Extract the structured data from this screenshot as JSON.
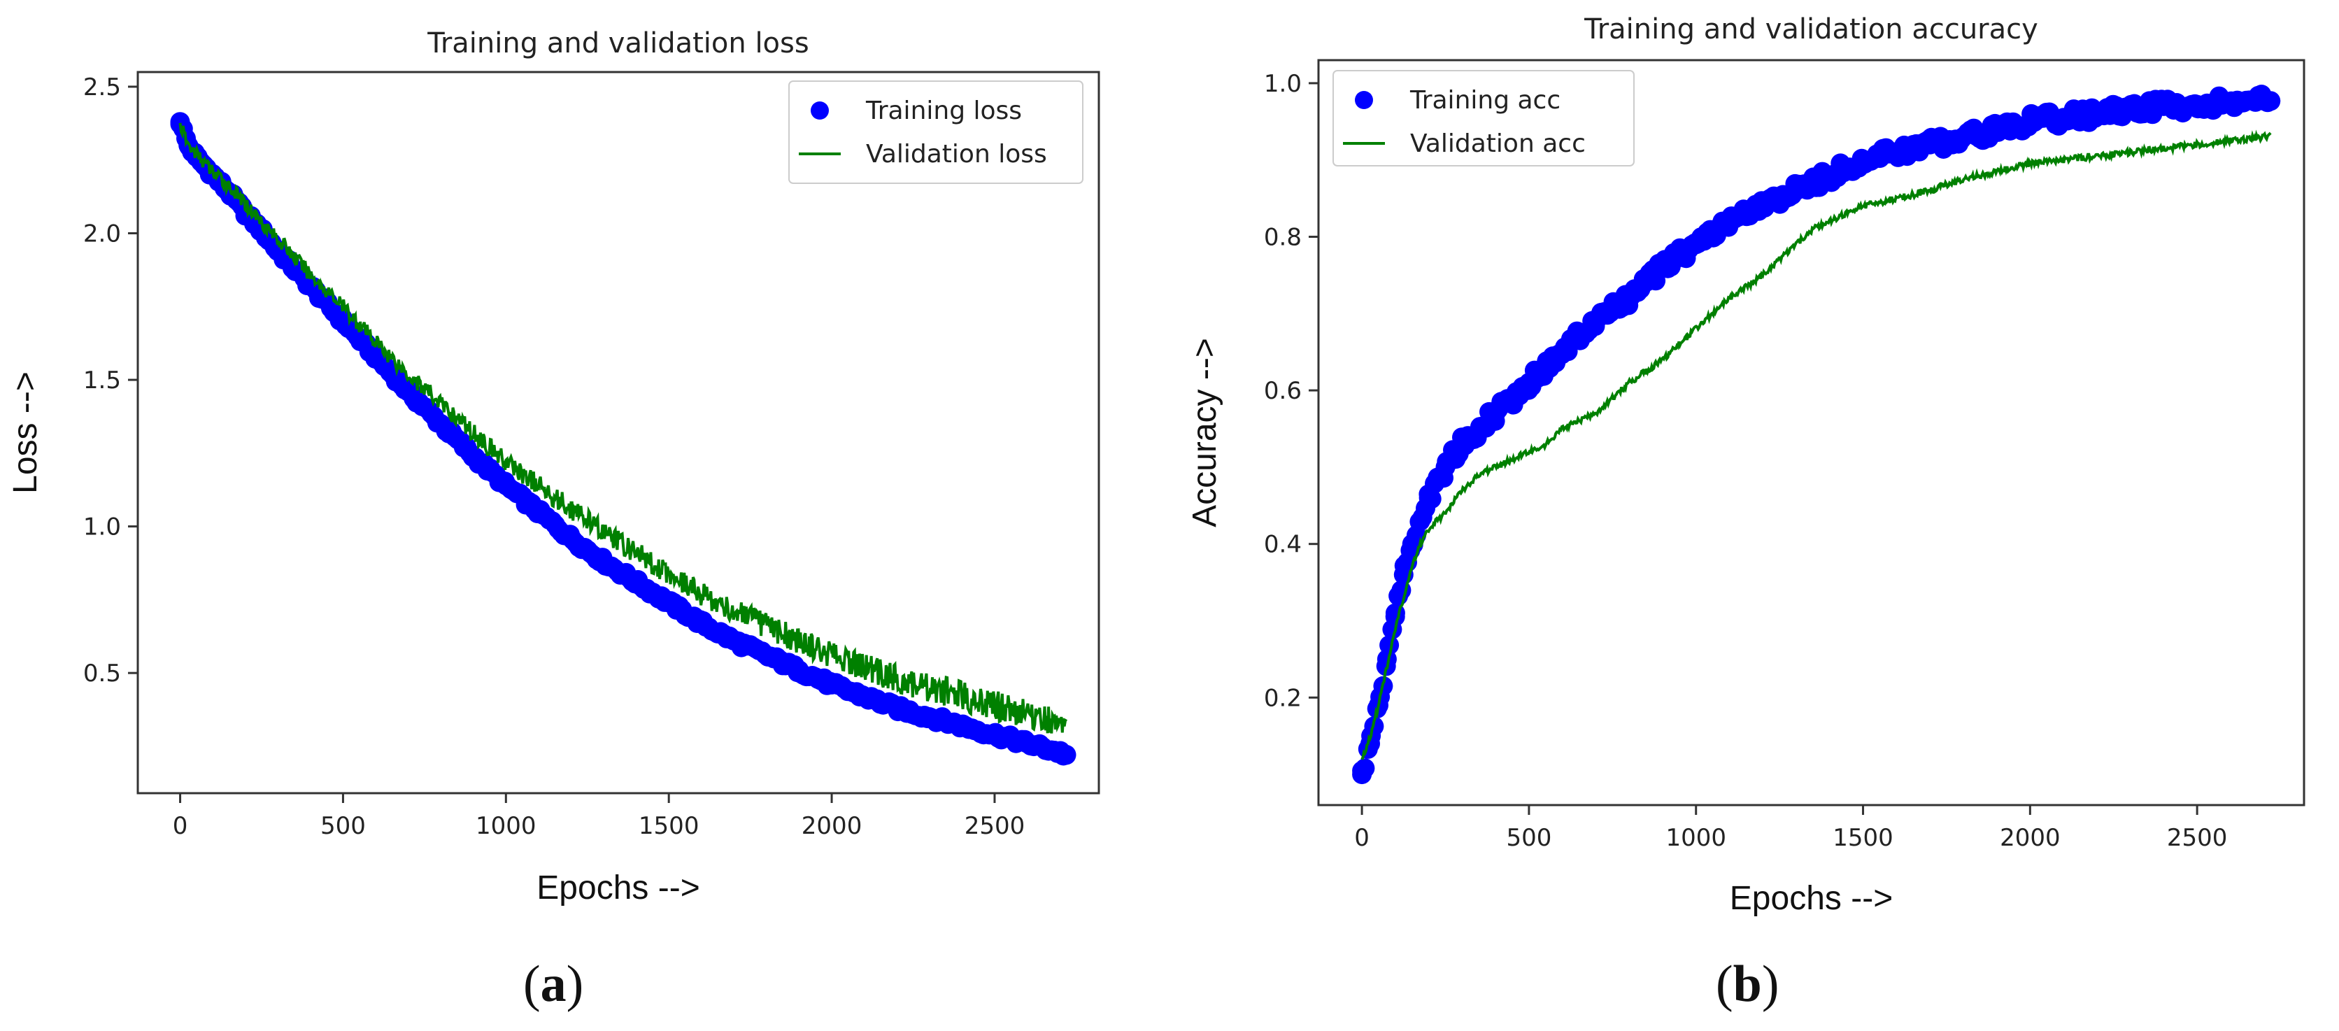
{
  "figure": {
    "panel_a_letter": "a",
    "panel_b_letter": "b"
  },
  "chart_data": [
    {
      "type": "scatter+line",
      "title": "Training and validation loss",
      "xlabel": "Epochs -->",
      "ylabel": "Loss -->",
      "xlim": [
        -130,
        2820
      ],
      "ylim": [
        0.09,
        2.55
      ],
      "xticks": [
        0,
        500,
        1000,
        1500,
        2000,
        2500
      ],
      "xtick_labels": [
        "0",
        "500",
        "1000",
        "1500",
        "2000",
        "2500"
      ],
      "yticks": [
        0.5,
        1.0,
        1.5,
        2.0,
        2.5
      ],
      "ytick_labels": [
        "0.5",
        "1.0",
        "1.5",
        "2.0",
        "2.5"
      ],
      "legend_position": "top-right",
      "series": [
        {
          "name": "Training loss",
          "kind": "scatter",
          "color": "#0000ff",
          "x": [
            0,
            25,
            50,
            75,
            100,
            150,
            200,
            250,
            300,
            400,
            500,
            600,
            700,
            800,
            900,
            1000,
            1100,
            1200,
            1300,
            1400,
            1500,
            1600,
            1700,
            1800,
            1900,
            2000,
            2100,
            2200,
            2300,
            2400,
            2500,
            2600,
            2700,
            2720
          ],
          "y": [
            2.38,
            2.3,
            2.26,
            2.23,
            2.2,
            2.14,
            2.07,
            2.01,
            1.94,
            1.82,
            1.7,
            1.58,
            1.46,
            1.35,
            1.24,
            1.14,
            1.05,
            0.96,
            0.88,
            0.81,
            0.74,
            0.67,
            0.61,
            0.56,
            0.51,
            0.46,
            0.42,
            0.38,
            0.35,
            0.32,
            0.29,
            0.26,
            0.23,
            0.22
          ]
        },
        {
          "name": "Validation loss",
          "kind": "line",
          "color": "#008000",
          "x": [
            0,
            25,
            50,
            75,
            100,
            150,
            200,
            250,
            300,
            400,
            500,
            600,
            700,
            800,
            900,
            1000,
            1100,
            1200,
            1300,
            1400,
            1500,
            1600,
            1700,
            1800,
            1900,
            2000,
            2100,
            2200,
            2300,
            2400,
            2500,
            2600,
            2700,
            2720
          ],
          "y": [
            2.37,
            2.3,
            2.27,
            2.24,
            2.21,
            2.16,
            2.1,
            2.04,
            1.98,
            1.86,
            1.75,
            1.63,
            1.52,
            1.42,
            1.32,
            1.22,
            1.14,
            1.06,
            0.98,
            0.91,
            0.84,
            0.77,
            0.71,
            0.66,
            0.61,
            0.56,
            0.52,
            0.48,
            0.45,
            0.42,
            0.39,
            0.36,
            0.33,
            0.32
          ]
        }
      ]
    },
    {
      "type": "scatter+line",
      "title": "Training and validation accuracy",
      "xlabel": "Epochs -->",
      "ylabel": "Accuracy -->",
      "xlim": [
        -130,
        2820
      ],
      "ylim": [
        0.06,
        1.03
      ],
      "xticks": [
        0,
        500,
        1000,
        1500,
        2000,
        2500
      ],
      "xtick_labels": [
        "0",
        "500",
        "1000",
        "1500",
        "2000",
        "2500"
      ],
      "yticks": [
        0.2,
        0.4,
        0.6,
        0.8,
        1.0
      ],
      "ytick_labels": [
        "0.2",
        "0.4",
        "0.6",
        "0.8",
        "1.0"
      ],
      "legend_position": "top-left",
      "series": [
        {
          "name": "Training acc",
          "kind": "scatter",
          "color": "#0000ff",
          "x": [
            0,
            25,
            50,
            75,
            100,
            125,
            150,
            175,
            200,
            250,
            300,
            400,
            500,
            600,
            700,
            800,
            900,
            1000,
            1100,
            1200,
            1300,
            1400,
            1500,
            1600,
            1700,
            1800,
            1900,
            2000,
            2100,
            2200,
            2300,
            2400,
            2500,
            2600,
            2700,
            2720
          ],
          "y": [
            0.1,
            0.14,
            0.19,
            0.25,
            0.31,
            0.36,
            0.4,
            0.43,
            0.46,
            0.5,
            0.53,
            0.57,
            0.61,
            0.65,
            0.69,
            0.72,
            0.76,
            0.79,
            0.82,
            0.84,
            0.86,
            0.88,
            0.9,
            0.91,
            0.92,
            0.93,
            0.94,
            0.95,
            0.955,
            0.96,
            0.965,
            0.97,
            0.972,
            0.975,
            0.977,
            0.977
          ]
        },
        {
          "name": "Validation acc",
          "kind": "line",
          "color": "#008000",
          "x": [
            0,
            25,
            50,
            75,
            100,
            125,
            150,
            175,
            200,
            250,
            300,
            350,
            400,
            450,
            500,
            550,
            600,
            650,
            700,
            750,
            800,
            900,
            1000,
            1100,
            1200,
            1300,
            1350,
            1400,
            1500,
            1600,
            1700,
            1800,
            1900,
            2000,
            2100,
            2200,
            2300,
            2400,
            2500,
            2600,
            2700,
            2720
          ],
          "y": [
            0.12,
            0.15,
            0.19,
            0.24,
            0.29,
            0.33,
            0.37,
            0.4,
            0.42,
            0.44,
            0.47,
            0.49,
            0.5,
            0.51,
            0.52,
            0.53,
            0.55,
            0.56,
            0.57,
            0.59,
            0.61,
            0.64,
            0.68,
            0.72,
            0.75,
            0.79,
            0.81,
            0.82,
            0.84,
            0.85,
            0.86,
            0.875,
            0.885,
            0.895,
            0.9,
            0.905,
            0.91,
            0.915,
            0.92,
            0.925,
            0.93,
            0.932
          ]
        }
      ]
    }
  ]
}
